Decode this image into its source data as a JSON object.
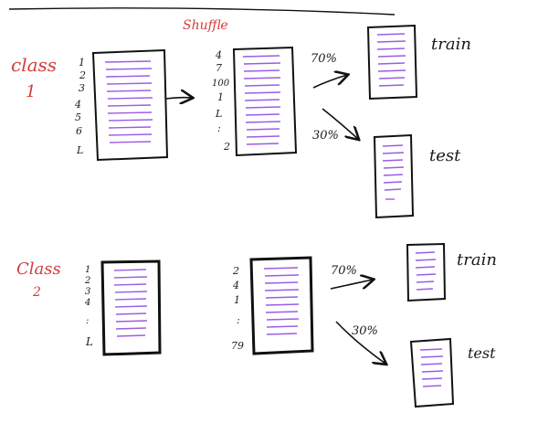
{
  "title": "Shuffle",
  "classes": [
    {
      "label_word": "class",
      "label_num": "1",
      "orig_ids": [
        "1",
        "2",
        "3",
        "4",
        "5",
        "6",
        "L"
      ],
      "shuf_ids": [
        "4",
        "7",
        "100",
        "1",
        "L",
        ":",
        "2"
      ],
      "train_pct": "70%",
      "test_pct": "30%",
      "train_label": "train",
      "test_label": "test"
    },
    {
      "label_word": "Class",
      "label_num": "2",
      "orig_ids": [
        "1",
        "2",
        "3",
        "4",
        ":",
        "L"
      ],
      "shuf_ids": [
        "2",
        "4",
        "1",
        ":",
        "79"
      ],
      "train_pct": "70%",
      "test_pct": "30%",
      "train_label": "train",
      "test_label": "test"
    }
  ],
  "colors": {
    "label_red": "#d63b3b",
    "line_purple": "#9b5de5",
    "ink": "#111111"
  }
}
